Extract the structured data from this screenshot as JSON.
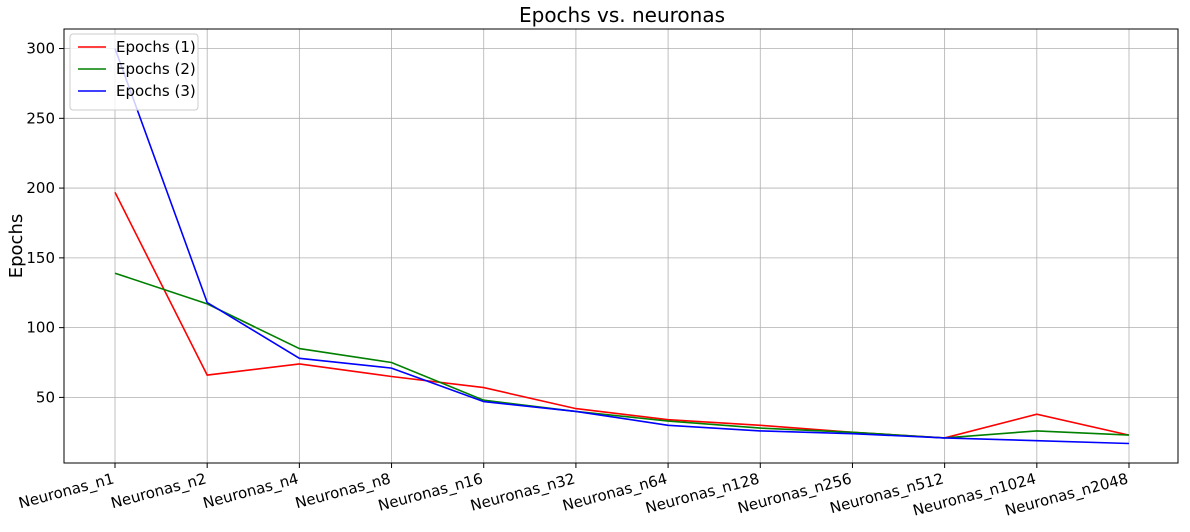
{
  "chart_data": {
    "type": "line",
    "title": "Epochs vs. neuronas",
    "xlabel": "",
    "ylabel": "Epochs",
    "categories": [
      "Neuronas_n1",
      "Neuronas_n2",
      "Neuronas_n4",
      "Neuronas_n8",
      "Neuronas_n16",
      "Neuronas_n32",
      "Neuronas_n64",
      "Neuronas_n128",
      "Neuronas_n256",
      "Neuronas_n512",
      "Neuronas_n1024",
      "Neuronas_n2048"
    ],
    "yticks": [
      50,
      100,
      150,
      200,
      250,
      300
    ],
    "ylim": [
      3,
      314
    ],
    "grid": true,
    "legend_position": "top-left",
    "series": [
      {
        "name": "Epochs (1)",
        "color": "#ff0000",
        "values": [
          197,
          66,
          74,
          65,
          57,
          42,
          34,
          30,
          25,
          21,
          38,
          23
        ]
      },
      {
        "name": "Epochs (2)",
        "color": "#008000",
        "values": [
          139,
          117,
          85,
          75,
          48,
          40,
          33,
          28,
          25,
          21,
          26,
          23
        ]
      },
      {
        "name": "Epochs (3)",
        "color": "#0000ff",
        "values": [
          300,
          118,
          78,
          71,
          47,
          40,
          30,
          26,
          24,
          21,
          19,
          17
        ]
      }
    ]
  }
}
